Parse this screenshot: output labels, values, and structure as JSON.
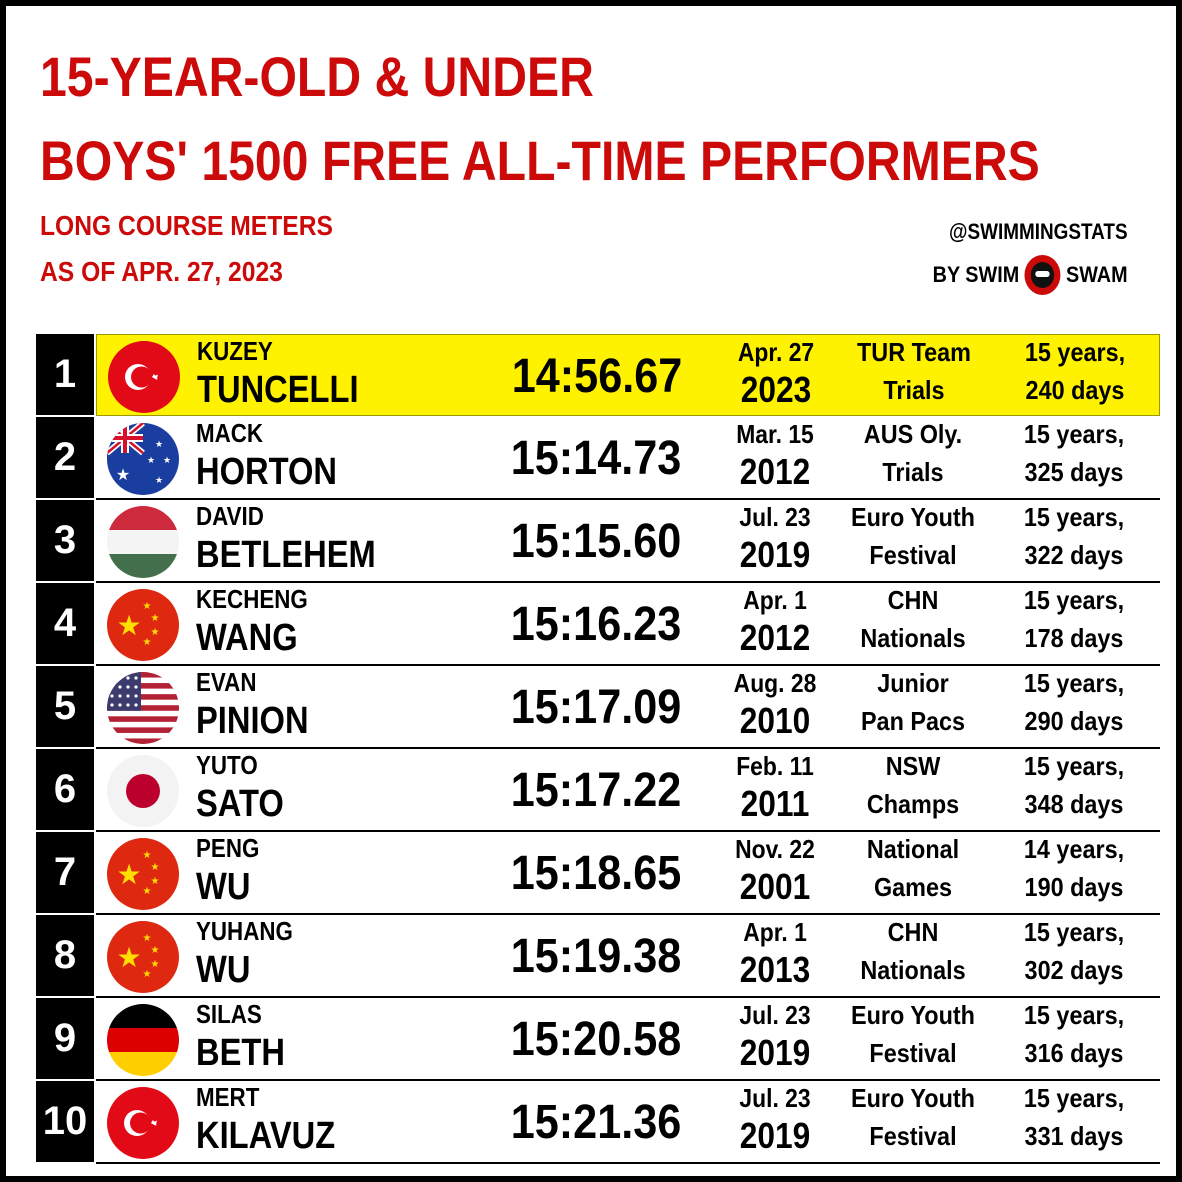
{
  "header": {
    "title_line1": "15-YEAR-OLD & UNDER",
    "title_line2": "BOYS' 1500 FREE ALL-TIME PERFORMERS",
    "course": "LONG COURSE METERS",
    "as_of": "AS OF APR. 27, 2023"
  },
  "brand": {
    "handle": "@SWIMMINGSTATS",
    "by_left": "BY SWIM",
    "by_right": "SWAM"
  },
  "colors": {
    "accent": "#cc0a0a",
    "highlight": "#fff200"
  },
  "rows": [
    {
      "rank": "1",
      "flag": "turkey-flag",
      "first": "KUZEY",
      "last": "TUNCELLI",
      "time": "14:56.67",
      "date": "Apr. 27",
      "year": "2023",
      "meet1": "TUR Team",
      "meet2": "Trials",
      "age1": "15 years,",
      "age2": "240 days"
    },
    {
      "rank": "2",
      "flag": "australia-flag",
      "first": "MACK",
      "last": "HORTON",
      "time": "15:14.73",
      "date": "Mar. 15",
      "year": "2012",
      "meet1": "AUS Oly.",
      "meet2": "Trials",
      "age1": "15 years,",
      "age2": "325 days"
    },
    {
      "rank": "3",
      "flag": "hungary-flag",
      "first": "DAVID",
      "last": "BETLEHEM",
      "time": "15:15.60",
      "date": "Jul. 23",
      "year": "2019",
      "meet1": "Euro Youth",
      "meet2": "Festival",
      "age1": "15 years,",
      "age2": "322 days"
    },
    {
      "rank": "4",
      "flag": "china-flag",
      "first": "KECHENG",
      "last": "WANG",
      "time": "15:16.23",
      "date": "Apr. 1",
      "year": "2012",
      "meet1": "CHN",
      "meet2": "Nationals",
      "age1": "15 years,",
      "age2": "178 days"
    },
    {
      "rank": "5",
      "flag": "usa-flag",
      "first": "EVAN",
      "last": "PINION",
      "time": "15:17.09",
      "date": "Aug. 28",
      "year": "2010",
      "meet1": "Junior",
      "meet2": "Pan Pacs",
      "age1": "15 years,",
      "age2": "290 days"
    },
    {
      "rank": "6",
      "flag": "japan-flag",
      "first": "YUTO",
      "last": "SATO",
      "time": "15:17.22",
      "date": "Feb. 11",
      "year": "2011",
      "meet1": "NSW",
      "meet2": "Champs",
      "age1": "15 years,",
      "age2": "348 days"
    },
    {
      "rank": "7",
      "flag": "china-flag",
      "first": "PENG",
      "last": "WU",
      "time": "15:18.65",
      "date": "Nov. 22",
      "year": "2001",
      "meet1": "National",
      "meet2": "Games",
      "age1": "14 years,",
      "age2": "190 days"
    },
    {
      "rank": "8",
      "flag": "china-flag",
      "first": "YUHANG",
      "last": "WU",
      "time": "15:19.38",
      "date": "Apr. 1",
      "year": "2013",
      "meet1": "CHN",
      "meet2": "Nationals",
      "age1": "15 years,",
      "age2": "302 days"
    },
    {
      "rank": "9",
      "flag": "germany-flag",
      "first": "SILAS",
      "last": "BETH",
      "time": "15:20.58",
      "date": "Jul. 23",
      "year": "2019",
      "meet1": "Euro Youth",
      "meet2": "Festival",
      "age1": "15 years,",
      "age2": "316 days"
    },
    {
      "rank": "10",
      "flag": "turkey-flag",
      "first": "MERT",
      "last": "KILAVUZ",
      "time": "15:21.36",
      "date": "Jul. 23",
      "year": "2019",
      "meet1": "Euro Youth",
      "meet2": "Festival",
      "age1": "15 years,",
      "age2": "331 days"
    }
  ]
}
